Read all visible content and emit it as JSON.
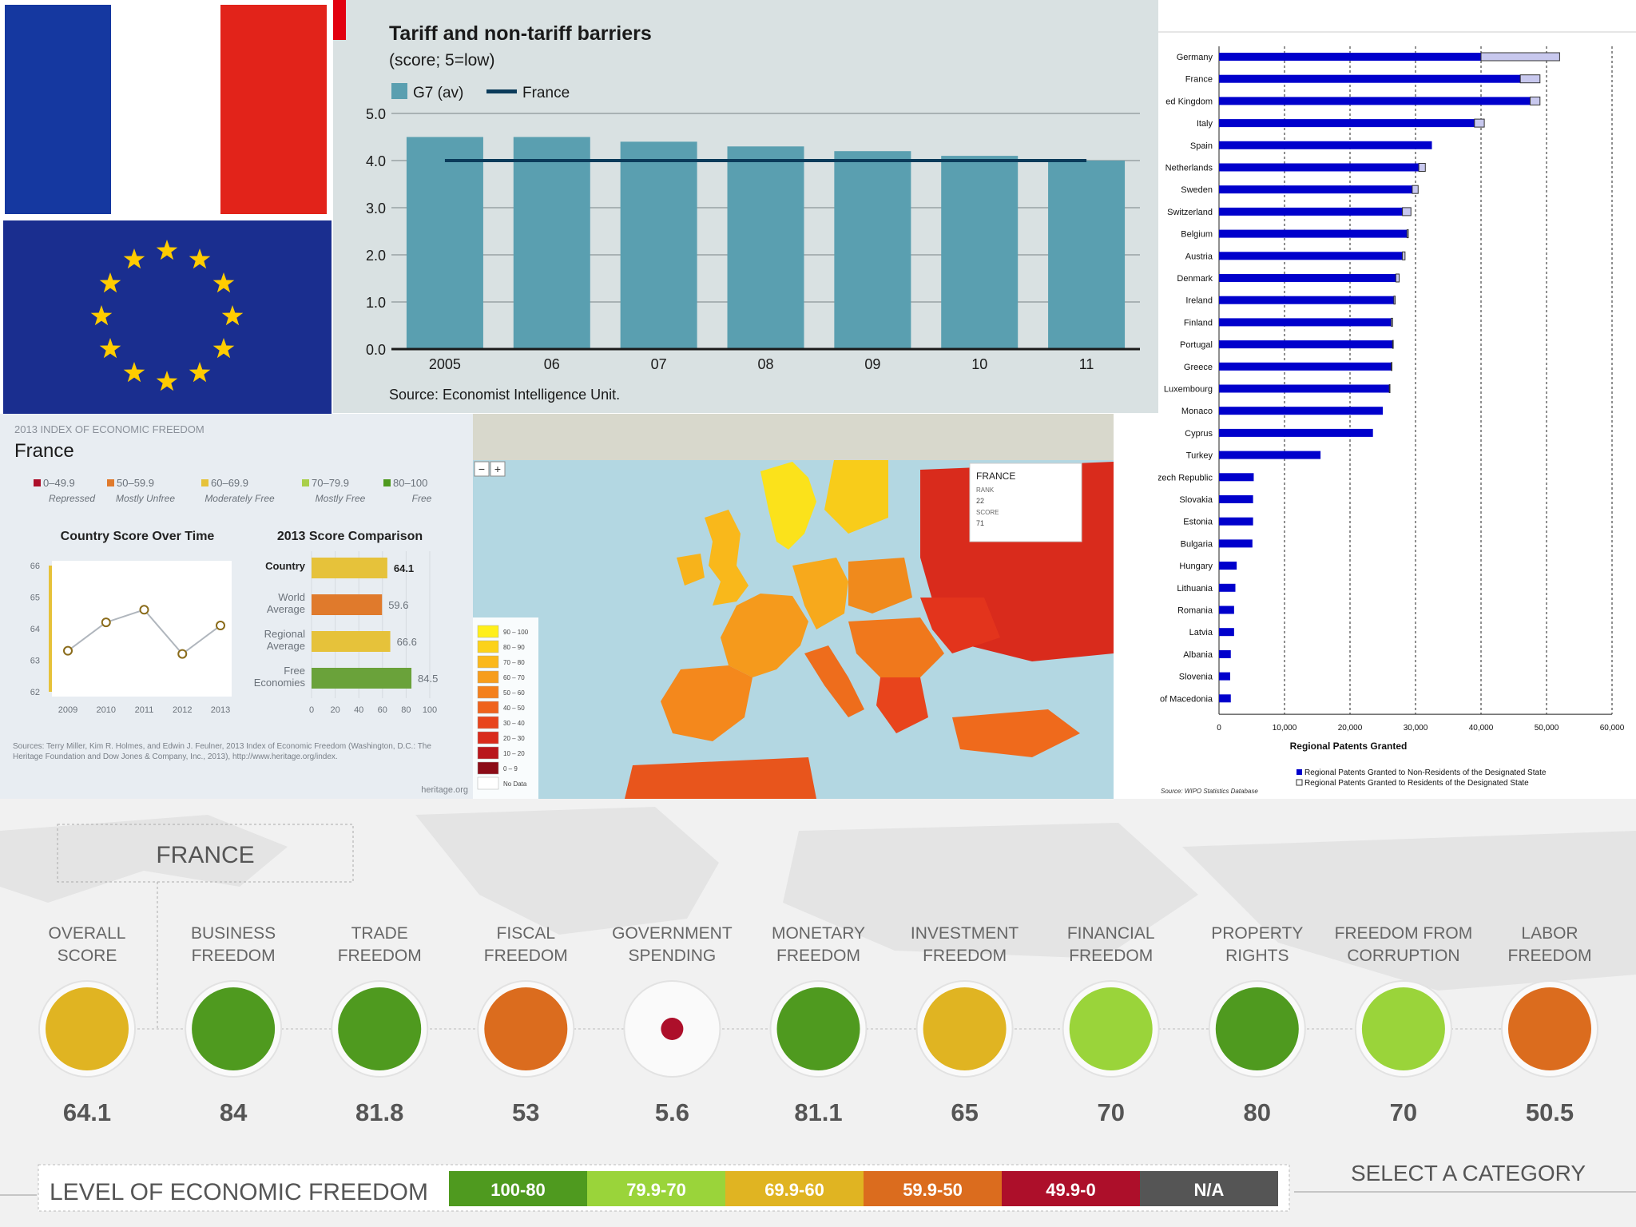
{
  "colors": {
    "fr_blue": "#1538a0",
    "fr_white": "#ffffff",
    "fr_red": "#e2231a",
    "eu_blue": "#1a2e8f",
    "eu_star": "#ffcc00",
    "bar_teal": "#5a9fb0",
    "line_navy": "#0b3b5a",
    "patent_dark": "#0000cc",
    "patent_light": "#c8c8ee",
    "level_100_80": "#4f9a1f",
    "level_79_70": "#9ad43a",
    "level_69_60": "#e0b422",
    "level_59_50": "#db6c1e",
    "level_49_0": "#ad0f2a",
    "level_na": "#555555"
  },
  "tariff": {
    "chart_data": {
      "type": "bar",
      "title": "Tariff and non-tariff barriers",
      "subtitle": "(score; 5=low)",
      "categories": [
        "2005",
        "06",
        "07",
        "08",
        "09",
        "10",
        "11"
      ],
      "series": [
        {
          "name": "G7 (av)",
          "values": [
            4.5,
            4.5,
            4.4,
            4.3,
            4.2,
            4.1,
            4.0
          ]
        },
        {
          "name": "France",
          "values": [
            4.0,
            4.0,
            4.0,
            4.0,
            4.0,
            4.0,
            4.0
          ]
        }
      ],
      "ylim": [
        0,
        5
      ],
      "yticks": [
        "0.0",
        "1.0",
        "2.0",
        "3.0",
        "4.0",
        "5.0"
      ],
      "source": "Source: Economist Intelligence Unit."
    }
  },
  "patents": {
    "chart_data": {
      "type": "bar",
      "orientation": "horizontal",
      "xlabel": "Regional Patents Granted",
      "xlim": [
        0,
        60000
      ],
      "xticks": [
        "0",
        "10,000",
        "20,000",
        "30,000",
        "40,000",
        "50,000",
        "60,000"
      ],
      "categories": [
        "Germany",
        "France",
        "ed Kingdom",
        "Italy",
        "Spain",
        "Netherlands",
        "Sweden",
        "Switzerland",
        "Belgium",
        "Austria",
        "Denmark",
        "Ireland",
        "Finland",
        "Portugal",
        "Greece",
        "Luxembourg",
        "Monaco",
        "Cyprus",
        "Turkey",
        "Czech Republic",
        "Slovakia",
        "Estonia",
        "Bulgaria",
        "Hungary",
        "Lithuania",
        "Romania",
        "Latvia",
        "Albania",
        "Slovenia",
        "T F Y R of Macedonia"
      ],
      "series": [
        {
          "name": "Regional Patents Granted to Non-Residents of the Designated State",
          "values": [
            40000,
            46000,
            47500,
            39000,
            32500,
            30500,
            29500,
            28000,
            28700,
            28000,
            27000,
            26700,
            26300,
            26500,
            26300,
            26000,
            25000,
            23500,
            15500,
            5300,
            5200,
            5200,
            5100,
            2700,
            2500,
            2300,
            2300,
            1800,
            1700,
            1800
          ]
        },
        {
          "name": "Regional Patents Granted to Residents of the Designated State",
          "values": [
            12000,
            3000,
            1500,
            1500,
            0,
            1000,
            900,
            1300,
            200,
            400,
            500,
            200,
            200,
            100,
            100,
            100,
            0,
            0,
            0,
            0,
            0,
            0,
            0,
            0,
            0,
            0,
            0,
            0,
            0,
            0
          ]
        }
      ],
      "source": "Source: WIPO Statistics Database"
    }
  },
  "heritage": {
    "header": "2013 INDEX OF ECONOMIC FREEDOM",
    "country": "France",
    "legend": [
      {
        "range": "0–49.9",
        "label": "Repressed",
        "color": "#ad0f2a"
      },
      {
        "range": "50–59.9",
        "label": "Mostly Unfree",
        "color": "#e07a2c"
      },
      {
        "range": "60–69.9",
        "label": "Moderately Free",
        "color": "#e6c23a"
      },
      {
        "range": "70–79.9",
        "label": "Mostly Free",
        "color": "#a9cf4a"
      },
      {
        "range": "80–100",
        "label": "Free",
        "color": "#4f9a1f"
      }
    ],
    "line_chart": {
      "type": "line",
      "title": "Country Score Over Time",
      "x": [
        "2009",
        "2010",
        "2011",
        "2012",
        "2013"
      ],
      "values": [
        63.3,
        64.2,
        64.6,
        63.2,
        64.1
      ],
      "ylim": [
        62,
        66
      ],
      "yticks": [
        "62",
        "63",
        "64",
        "65",
        "66"
      ]
    },
    "comparison_chart": {
      "type": "bar",
      "title": "2013 Score Comparison",
      "categories": [
        "Country",
        "World Average",
        "Regional Average",
        "Free Economies"
      ],
      "values": [
        64.1,
        59.6,
        66.6,
        84.5
      ],
      "labels": [
        "64.1",
        "59.6",
        "66.6",
        "84.5"
      ],
      "colors": [
        "#e6c23a",
        "#e07a2c",
        "#e6c23a",
        "#6aa23a"
      ],
      "xlim": [
        0,
        100
      ],
      "xticks": [
        "0",
        "20",
        "40",
        "60",
        "80",
        "100"
      ]
    },
    "sources": "Sources: Terry Miller, Kim R. Holmes, and Edwin J. Feulner, 2013 Index of Economic Freedom (Washington, D.C.: The Heritage Foundation and Dow Jones & Company, Inc., 2013), http://www.heritage.org/index.",
    "credit": "heritage.org"
  },
  "map": {
    "zoom_minus": "−",
    "zoom_plus": "+",
    "popup_title": "FRANCE",
    "popup_lines": [
      "RANK",
      "22",
      "SCORE",
      "71"
    ],
    "legend": [
      "90 – 100",
      "80 – 90",
      "70 – 80",
      "60 – 70",
      "50 – 60",
      "40 – 50",
      "30 – 40",
      "20 – 30",
      "10 – 20",
      "0 – 9",
      "No Data"
    ],
    "legend_colors": [
      "#ffef1a",
      "#fcd21a",
      "#fbb81b",
      "#f79d1c",
      "#f4801c",
      "#ef621c",
      "#e8441c",
      "#d92b1c",
      "#b9161c",
      "#8c0c17",
      "#ffffff"
    ]
  },
  "bottom": {
    "country": "FRANCE",
    "categories": [
      {
        "line1": "OVERALL",
        "line2": "SCORE",
        "value": "64.1",
        "color": "#e0b422"
      },
      {
        "line1": "BUSINESS",
        "line2": "FREEDOM",
        "value": "84",
        "color": "#4f9a1f"
      },
      {
        "line1": "TRADE",
        "line2": "FREEDOM",
        "value": "81.8",
        "color": "#4f9a1f"
      },
      {
        "line1": "FISCAL",
        "line2": "FREEDOM",
        "value": "53",
        "color": "#db6c1e"
      },
      {
        "line1": "GOVERNMENT",
        "line2": "SPENDING",
        "value": "5.6",
        "color": "#ad0f2a"
      },
      {
        "line1": "MONETARY",
        "line2": "FREEDOM",
        "value": "81.1",
        "color": "#4f9a1f"
      },
      {
        "line1": "INVESTMENT",
        "line2": "FREEDOM",
        "value": "65",
        "color": "#e0b422"
      },
      {
        "line1": "FINANCIAL",
        "line2": "FREEDOM",
        "value": "70",
        "color": "#9ad43a"
      },
      {
        "line1": "PROPERTY",
        "line2": "RIGHTS",
        "value": "80",
        "color": "#4f9a1f"
      },
      {
        "line1": "FREEDOM FROM",
        "line2": "CORRUPTION",
        "value": "70",
        "color": "#9ad43a"
      },
      {
        "line1": "LABOR",
        "line2": "FREEDOM",
        "value": "50.5",
        "color": "#db6c1e"
      }
    ],
    "select_label": "SELECT A CATEGORY",
    "level_label": "LEVEL OF ECONOMIC FREEDOM",
    "levels": [
      {
        "label": "100-80",
        "color": "#4f9a1f"
      },
      {
        "label": "79.9-70",
        "color": "#9ad43a"
      },
      {
        "label": "69.9-60",
        "color": "#e0b422"
      },
      {
        "label": "59.9-50",
        "color": "#db6c1e"
      },
      {
        "label": "49.9-0",
        "color": "#ad0f2a"
      },
      {
        "label": "N/A",
        "color": "#555555"
      }
    ]
  }
}
